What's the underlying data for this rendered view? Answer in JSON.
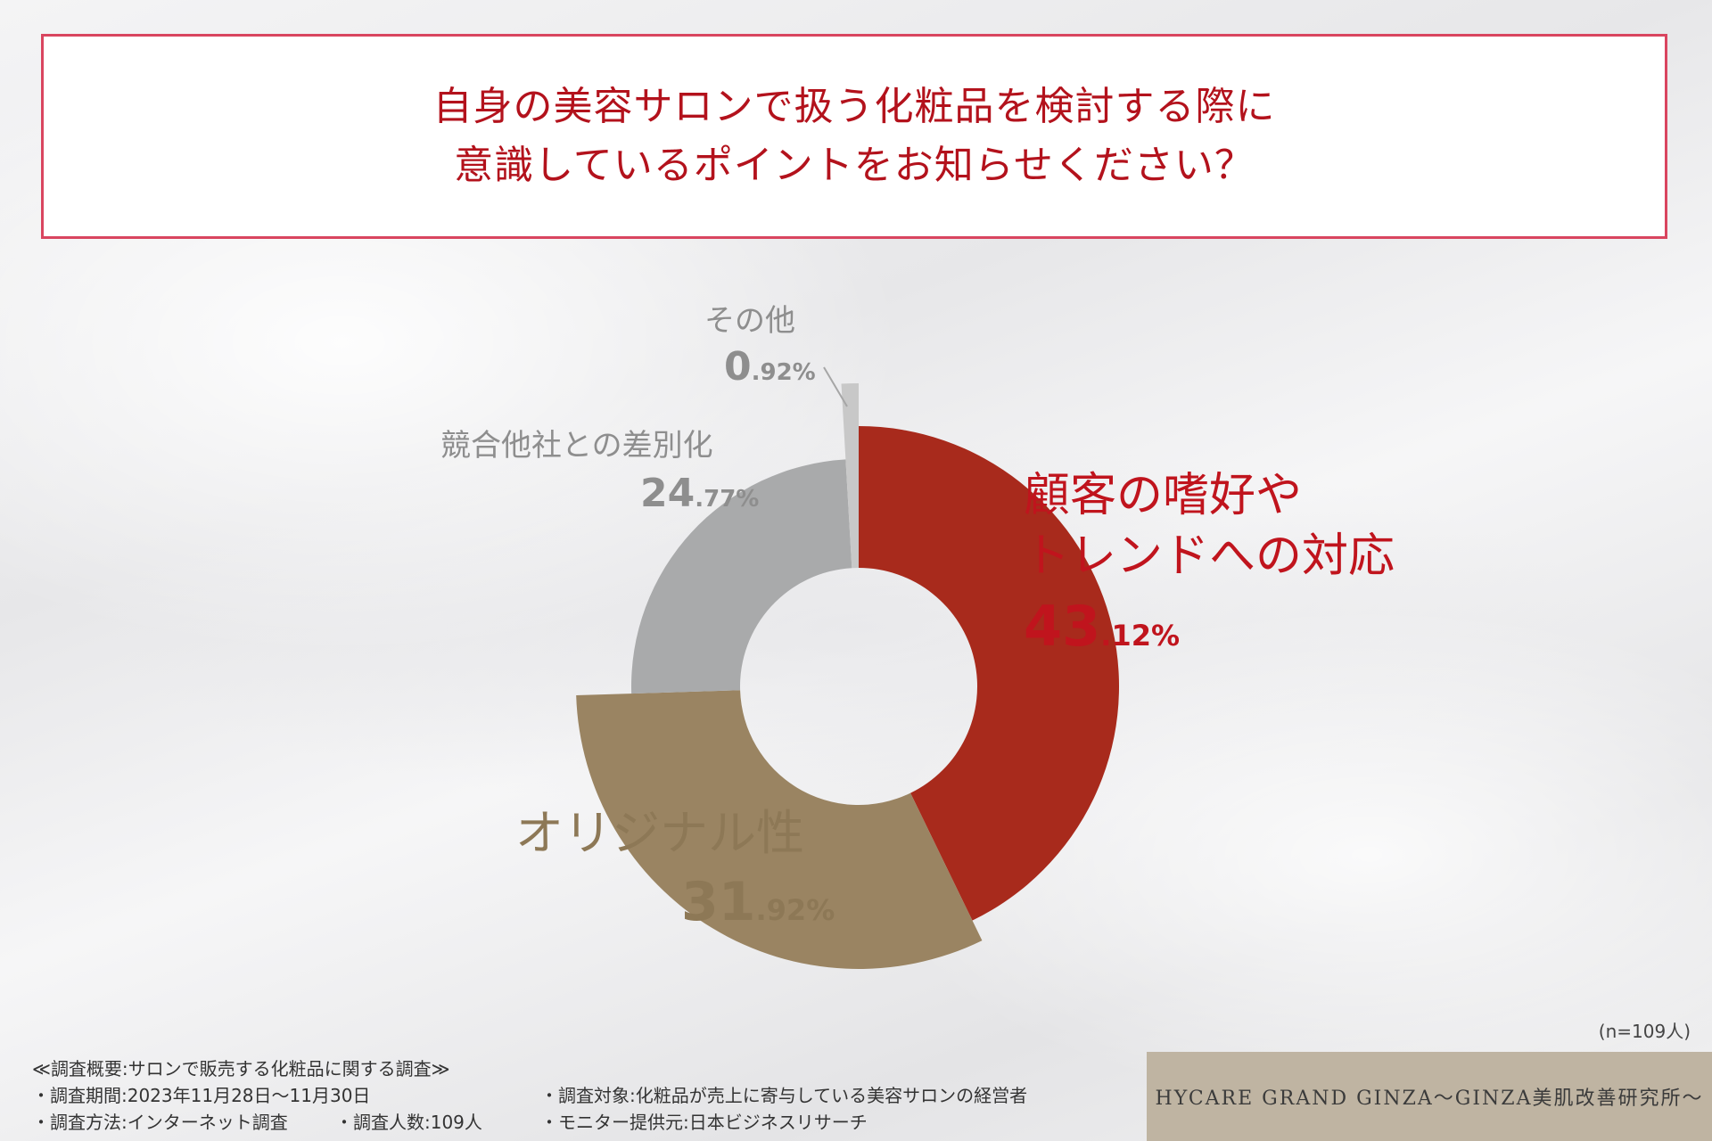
{
  "title": {
    "line1": "自身の美容サロンで扱う化粧品を検討する際に",
    "line2": "意識しているポイントをお知らせください？"
  },
  "chart_data": {
    "type": "pie",
    "slices": [
      {
        "name": "顧客の嗜好やトレンドへの対応",
        "name_lines": [
          "顧客の嗜好や",
          "トレンドへの対応"
        ],
        "value": 43.12,
        "pct_int": "43",
        "pct_dec": ".12%",
        "color": "#a82a1c",
        "label_color": "#c0141d"
      },
      {
        "name": "オリジナル性",
        "name_lines": [
          "オリジナル性"
        ],
        "value": 31.92,
        "pct_int": "31",
        "pct_dec": ".92%",
        "color": "#9a8462",
        "label_color": "#8d7856"
      },
      {
        "name": "競合他社との差別化",
        "name_lines": [
          "競合他社との差別化"
        ],
        "value": 24.77,
        "pct_int": "24",
        "pct_dec": ".77%",
        "color": "#a9aaab",
        "label_color": "#8e8e8e"
      },
      {
        "name": "その他",
        "name_lines": [
          "その他"
        ],
        "value": 0.92,
        "pct_int": "0",
        "pct_dec": ".92%",
        "color": "#c8c8c8",
        "label_color": "#8e8e8e"
      }
    ]
  },
  "sample": "(n=109人)",
  "footer": {
    "overview": "≪調査概要:サロンで販売する化粧品に関する調査≫",
    "period": "・調査期間:2023年11月28日〜11月30日",
    "target": "・調査対象:化粧品が売上に寄与している美容サロンの経営者",
    "method": "・調査方法:インターネット調査",
    "count": "・調査人数:109人",
    "provider": "・モニター提供元:日本ビジネスリサーチ"
  },
  "brand": "HYCARE GRAND GINZA〜GINZA美肌改善研究所〜"
}
